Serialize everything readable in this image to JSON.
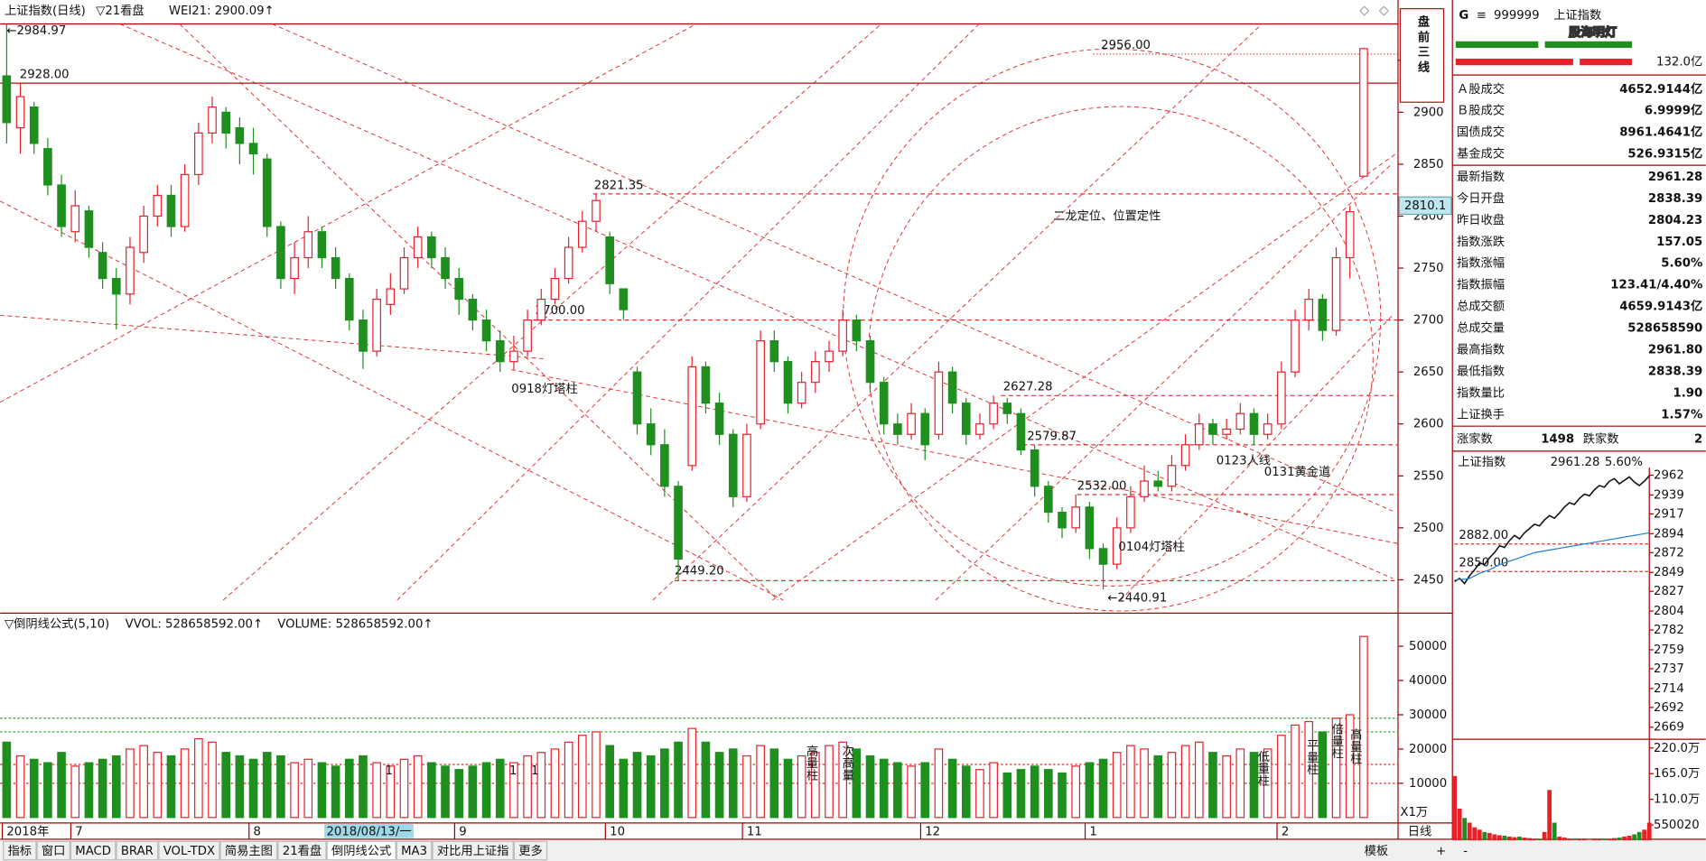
{
  "header": {
    "title": "上证指数(日线)",
    "indicators": [
      "▽21看盘",
      "WEI21: 2900.09↑"
    ]
  },
  "chart_data": [
    {
      "type": "candlestick",
      "categories": [
        "2018年",
        null,
        null,
        null,
        null,
        "7",
        null,
        null,
        null,
        null,
        null,
        null,
        null,
        null,
        null,
        null,
        null,
        null,
        "8",
        null,
        null,
        null,
        null,
        null,
        null,
        null,
        null,
        null,
        null,
        null,
        null,
        null,
        null,
        "9",
        null,
        null,
        null,
        null,
        null,
        null,
        null,
        null,
        null,
        null,
        "10",
        null,
        null,
        null,
        null,
        null,
        null,
        null,
        null,
        null,
        "11",
        null,
        null,
        null,
        null,
        null,
        null,
        null,
        null,
        null,
        null,
        null,
        null,
        "12",
        null,
        null,
        null,
        null,
        null,
        null,
        null,
        null,
        null,
        null,
        null,
        "1",
        null,
        null,
        null,
        null,
        null,
        null,
        null,
        null,
        null,
        null,
        null,
        null,
        null,
        "2",
        null,
        null,
        null,
        null,
        null,
        null
      ],
      "open": [
        2935,
        2885,
        2905,
        2865,
        2830,
        2785,
        2805,
        2765,
        2740,
        2725,
        2765,
        2800,
        2820,
        2790,
        2840,
        2880,
        2900,
        2885,
        2870,
        2855,
        2790,
        2740,
        2760,
        2785,
        2760,
        2740,
        2700,
        2670,
        2715,
        2730,
        2760,
        2780,
        2760,
        2740,
        2720,
        2700,
        2680,
        2660,
        2670,
        2700,
        2720,
        2740,
        2770,
        2795,
        2780,
        2730,
        2650,
        2600,
        2580,
        2540,
        2560,
        2655,
        2620,
        2590,
        2530,
        2600,
        2680,
        2660,
        2620,
        2640,
        2660,
        2670,
        2700,
        2680,
        2640,
        2600,
        2590,
        2610,
        2590,
        2650,
        2620,
        2590,
        2600,
        2620,
        2610,
        2575,
        2540,
        2515,
        2500,
        2520,
        2480,
        2465,
        2500,
        2530,
        2545,
        2540,
        2560,
        2580,
        2600,
        2590,
        2595,
        2610,
        2590,
        2600,
        2650,
        2700,
        2720,
        2690,
        2760,
        2838.39
      ],
      "high": [
        2984.97,
        2928,
        2910,
        2875,
        2840,
        2825,
        2810,
        2775,
        2750,
        2780,
        2810,
        2830,
        2830,
        2850,
        2890,
        2915,
        2905,
        2895,
        2885,
        2860,
        2795,
        2775,
        2800,
        2790,
        2770,
        2745,
        2710,
        2730,
        2745,
        2770,
        2790,
        2785,
        2770,
        2750,
        2725,
        2710,
        2690,
        2685,
        2710,
        2730,
        2750,
        2780,
        2805,
        2821.35,
        2785,
        2730,
        2655,
        2615,
        2595,
        2545,
        2665,
        2660,
        2630,
        2595,
        2600,
        2690,
        2690,
        2665,
        2650,
        2670,
        2680,
        2710,
        2705,
        2685,
        2645,
        2610,
        2620,
        2615,
        2660,
        2655,
        2625,
        2610,
        2627.28,
        2625,
        2615,
        2580,
        2545,
        2520,
        2532,
        2525,
        2485,
        2510,
        2540,
        2560,
        2555,
        2570,
        2590,
        2610,
        2605,
        2605,
        2620,
        2615,
        2610,
        2660,
        2710,
        2730,
        2725,
        2770,
        2810,
        2961.8
      ],
      "low": [
        2870,
        2860,
        2860,
        2820,
        2780,
        2775,
        2760,
        2730,
        2691,
        2715,
        2755,
        2790,
        2780,
        2785,
        2830,
        2870,
        2865,
        2850,
        2840,
        2780,
        2730,
        2725,
        2750,
        2750,
        2730,
        2690,
        2653,
        2665,
        2705,
        2725,
        2750,
        2750,
        2730,
        2705,
        2690,
        2670,
        2650,
        2652,
        2665,
        2695,
        2715,
        2735,
        2765,
        2785,
        2725,
        2700,
        2590,
        2570,
        2530,
        2449.2,
        2555,
        2610,
        2580,
        2520,
        2525,
        2595,
        2650,
        2610,
        2615,
        2630,
        2650,
        2665,
        2670,
        2630,
        2590,
        2580,
        2585,
        2565,
        2585,
        2610,
        2580,
        2585,
        2595,
        2600,
        2570,
        2530,
        2505,
        2490,
        2495,
        2470,
        2440.91,
        2460,
        2495,
        2525,
        2535,
        2535,
        2555,
        2575,
        2580,
        2585,
        2590,
        2580,
        2585,
        2595,
        2645,
        2690,
        2680,
        2685,
        2740,
        2838.39
      ],
      "close": [
        2890,
        2915,
        2870,
        2830,
        2790,
        2810,
        2770,
        2740,
        2725,
        2770,
        2800,
        2820,
        2790,
        2840,
        2880,
        2905,
        2880,
        2870,
        2860,
        2790,
        2740,
        2760,
        2785,
        2760,
        2740,
        2700,
        2670,
        2720,
        2730,
        2760,
        2780,
        2760,
        2740,
        2720,
        2700,
        2680,
        2660,
        2670,
        2700,
        2720,
        2740,
        2770,
        2795,
        2815,
        2735,
        2710,
        2600,
        2580,
        2540,
        2470,
        2655,
        2620,
        2590,
        2530,
        2590,
        2680,
        2660,
        2620,
        2640,
        2660,
        2670,
        2700,
        2680,
        2640,
        2600,
        2590,
        2610,
        2580,
        2650,
        2620,
        2590,
        2600,
        2620,
        2610,
        2575,
        2540,
        2515,
        2500,
        2520,
        2480,
        2465,
        2500,
        2530,
        2545,
        2540,
        2560,
        2580,
        2600,
        2590,
        2595,
        2610,
        2590,
        2600,
        2650,
        2700,
        2720,
        2690,
        2760,
        2804.23,
        2961.28
      ],
      "up_color": "#e8202a",
      "down_color": "#1f8f1f",
      "ylim": [
        2420,
        2985
      ],
      "yticks": [
        2450,
        2500,
        2550,
        2600,
        2650,
        2700,
        2750,
        2800,
        2850,
        2900,
        2950
      ],
      "cursor_price": 2810.1,
      "cursor_date": "2018/08/13/一",
      "levels": [
        {
          "label": "←2984.97",
          "value": 2984.97,
          "line": "none"
        },
        {
          "label": "2928.00",
          "value": 2928,
          "line": "solid"
        },
        {
          "label": "2956.00",
          "value": 2956,
          "line": "dotted"
        },
        {
          "label": "2821.35",
          "value": 2821.35,
          "line": "dashed"
        },
        {
          "label": "2700.00",
          "value": 2700,
          "line": "dashed"
        },
        {
          "label": "2627.28",
          "value": 2627.28,
          "line": "dashed"
        },
        {
          "label": "2579.87",
          "value": 2579.87,
          "line": "dashed"
        },
        {
          "label": "2532.00",
          "value": 2532,
          "line": "dashed"
        },
        {
          "label": "2449.20",
          "value": 2449.2,
          "line": "dashed"
        },
        {
          "label": "←2440.91",
          "value": 2440.91,
          "line": "none"
        }
      ],
      "notes": [
        "0918灯塔柱",
        "0123人线",
        "0131黄金道",
        "0104灯塔柱",
        "二龙定位、位置定性"
      ],
      "box_note": "盘前三线"
    },
    {
      "type": "bar",
      "title": "▽倒阴线公式(5,10)",
      "indicators": [
        "VVOL: 528658592.00↑",
        "VOLUME: 528658592.00↑"
      ],
      "unit_label": "X1万",
      "values": [
        22000,
        18000,
        17000,
        16000,
        19000,
        15000,
        16000,
        17000,
        18000,
        20000,
        21000,
        19000,
        18000,
        20000,
        23000,
        22000,
        19000,
        18000,
        17000,
        19000,
        18000,
        16000,
        17000,
        16000,
        15000,
        17000,
        18000,
        16000,
        15000,
        17000,
        18000,
        16000,
        15000,
        14000,
        15000,
        16000,
        17000,
        16000,
        18000,
        19000,
        20000,
        22000,
        24000,
        25000,
        21000,
        17000,
        19000,
        18000,
        20000,
        22000,
        26000,
        22000,
        19000,
        20000,
        18000,
        21000,
        20000,
        17000,
        18000,
        19000,
        21000,
        22000,
        20000,
        18000,
        17000,
        16000,
        15000,
        16000,
        20000,
        17000,
        15000,
        14000,
        16000,
        13000,
        14000,
        15000,
        14000,
        13000,
        15000,
        16000,
        17000,
        19000,
        21000,
        20000,
        18000,
        19000,
        21000,
        22000,
        19000,
        18000,
        20000,
        19000,
        20000,
        24000,
        27000,
        28000,
        25000,
        29000,
        30000,
        52866
      ],
      "ylim": [
        0,
        58400
      ],
      "yticks": [
        10000,
        20000,
        30000,
        40000,
        50000
      ],
      "hlines": [
        {
          "value": 29000,
          "color": "#1f9f1f"
        },
        {
          "value": 25000,
          "color": "#1f9f1f"
        },
        {
          "value": 15500,
          "color": "#e8202a"
        },
        {
          "value": 10000,
          "color": "#e8202a"
        }
      ],
      "notes": [
        "高量柱",
        "次高量",
        "低量柱",
        "平量柱",
        "倍量柱",
        "高量柱",
        "1",
        "1",
        "1"
      ]
    },
    {
      "type": "line",
      "title": "上证指数",
      "price": "2961.28",
      "change": "5.60%",
      "series": [
        {
          "color": "#111111",
          "values": [
            2838.39,
            2842,
            2836,
            2845,
            2852,
            2860,
            2858,
            2866,
            2872,
            2880,
            2878,
            2886,
            2892,
            2888,
            2895,
            2900,
            2905,
            2903,
            2910,
            2915,
            2912,
            2918,
            2925,
            2930,
            2928,
            2935,
            2940,
            2938,
            2945,
            2950,
            2948,
            2955,
            2958,
            2952,
            2956,
            2960,
            2954,
            2950,
            2955,
            2961.28
          ]
        },
        {
          "color": "#1e7fd0",
          "values": [
            2840,
            2841,
            2841,
            2842,
            2845,
            2848,
            2850,
            2852,
            2855,
            2858,
            2860,
            2862,
            2864,
            2866,
            2868,
            2870,
            2872,
            2873,
            2874,
            2875,
            2876,
            2877,
            2878,
            2879,
            2880,
            2881,
            2882,
            2883,
            2884,
            2885,
            2886,
            2887,
            2888,
            2889,
            2890,
            2891,
            2892,
            2893,
            2894,
            2895
          ]
        }
      ],
      "ylim": [
        2655,
        2971
      ],
      "yticks": [
        2962,
        2939,
        2917,
        2894,
        2872,
        2849,
        2827,
        2804,
        2782,
        2759,
        2737,
        2714,
        2692,
        2669
      ],
      "levels": [
        {
          "label": "2882.00",
          "value": 2882
        },
        {
          "label": "2850.00",
          "value": 2850
        }
      ]
    },
    {
      "type": "bar",
      "values": [
        1600000,
        900000,
        700000,
        600000,
        500000,
        450000,
        400000,
        380000,
        350000,
        330000,
        320000,
        300000,
        290000,
        300000,
        280000,
        270000,
        260000,
        250000,
        400000,
        1300000,
        600000,
        300000,
        280000,
        260000,
        250000,
        240000,
        230000,
        220000,
        230000,
        240000,
        250000,
        260000,
        270000,
        280000,
        300000,
        320000,
        350000,
        400000,
        450000,
        600000
      ],
      "ylim": [
        0,
        2387000
      ],
      "yticks": [
        {
          "value": 2200000,
          "label": "220.0万"
        },
        {
          "value": 1650000,
          "label": "165.0万"
        },
        {
          "value": 1100000,
          "label": "110.0万"
        },
        550020
      ]
    }
  ],
  "side_panel": {
    "marker": "G",
    "menu": "≡",
    "code": "999999",
    "name": "上证指数",
    "watermark": "股海明灯",
    "amount": "132.0亿",
    "rows": [
      {
        "label": "Ａ股成交",
        "value": "4652.9144亿"
      },
      {
        "label": "Ｂ股成交",
        "value": "6.9999亿"
      },
      {
        "label": "国债成交",
        "value": "8961.4641亿"
      },
      {
        "label": "基金成交",
        "value": "526.9315亿"
      },
      {
        "label": "最新指数",
        "value": "2961.28",
        "color": "red"
      },
      {
        "label": "今日开盘",
        "value": "2838.39",
        "color": "red"
      },
      {
        "label": "昨日收盘",
        "value": "2804.23"
      },
      {
        "label": "指数涨跌",
        "value": "157.05",
        "color": "red"
      },
      {
        "label": "指数涨幅",
        "value": "5.60%",
        "color": "red"
      },
      {
        "label": "指数振幅",
        "value": "123.41/4.40%"
      },
      {
        "label": "总成交额",
        "value": "4659.9143亿"
      },
      {
        "label": "总成交量",
        "value": "528658590"
      },
      {
        "label": "最高指数",
        "value": "2961.80",
        "color": "red"
      },
      {
        "label": "最低指数",
        "value": "2838.39",
        "color": "red"
      },
      {
        "label": "指数量比",
        "value": "1.90",
        "color": "red"
      },
      {
        "label": "上证换手",
        "value": "1.57%"
      }
    ],
    "breadth": {
      "up_label": "涨家数",
      "up": "1498",
      "down_label": "跌家数",
      "down": "2"
    }
  },
  "toolbar": {
    "tabs": [
      "指标",
      "窗口",
      "MACD",
      "BRAR",
      "VOL-TDX",
      "简易主图",
      "21看盘",
      "倒阴线公式",
      "MA3",
      "对比用上证指",
      "更多"
    ],
    "active": 7,
    "right": [
      "模板",
      "日线",
      "+",
      "-"
    ]
  }
}
